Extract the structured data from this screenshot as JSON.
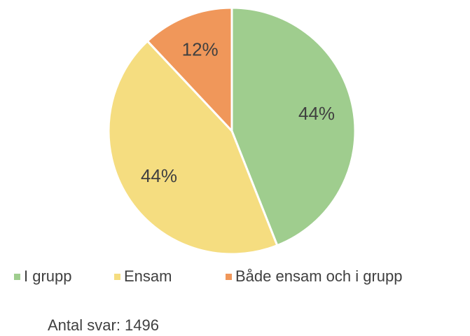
{
  "chart_data": {
    "type": "pie",
    "categories": [
      "I grupp",
      "Ensam",
      "Både ensam och i grupp"
    ],
    "values": [
      44,
      44,
      12
    ],
    "value_labels": [
      "44%",
      "44%",
      "12%"
    ],
    "colors": [
      "#9fcd8e",
      "#f5dd80",
      "#f0975a"
    ],
    "legend": "bottom",
    "annotation": "Antal svar: 1496"
  }
}
